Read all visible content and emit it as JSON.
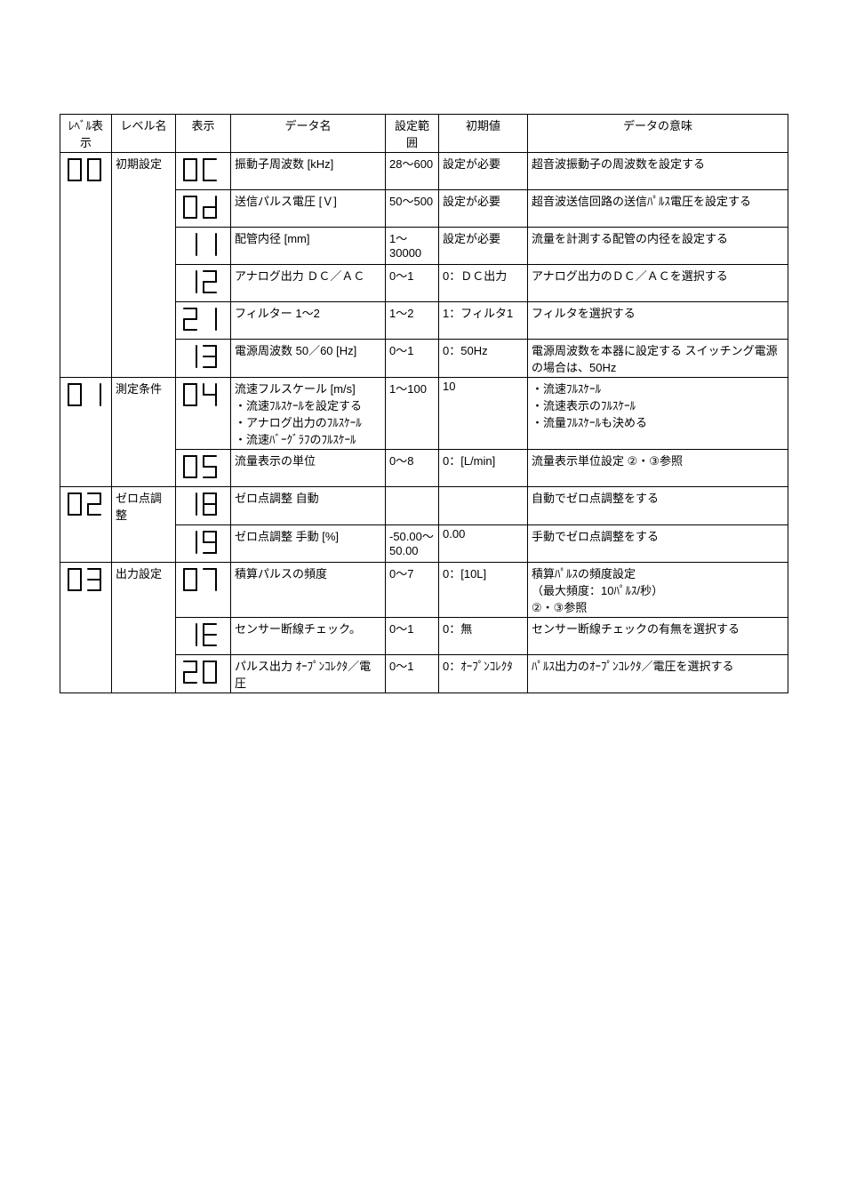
{
  "page": {
    "header": [
      "ﾚﾍﾞﾙ表示",
      "レベル名",
      "表示",
      "データ名",
      "設定範囲",
      "初期値",
      "データの意味"
    ],
    "rows": [
      {
        "level_seg": "00",
        "level_name": "初期設定",
        "code_seg": "0C",
        "name": "振動子周波数 [kHz]",
        "range": "28～600",
        "init": "設定が必要",
        "desc": "超音波振動子の周波数を設定する"
      },
      {
        "level_seg": "",
        "level_name": "",
        "code_seg": "0D",
        "name": "送信パルス電圧 [Ｖ]",
        "range": "50～500",
        "init": "設定が必要",
        "desc": "超音波送信回路の送信ﾊﾟﾙｽ電圧を設定する"
      },
      {
        "level_seg": "",
        "level_name": "",
        "code_seg": "11",
        "name": "配管内径 [mm]",
        "range": "1～30000",
        "init": "設定が必要",
        "desc": "流量を計測する配管の内径を設定する"
      },
      {
        "level_seg": "",
        "level_name": "",
        "code_seg": "12",
        "name": "アナログ出力 ＤＣ／ＡＣ",
        "range": "0～1",
        "init": "0：ＤＣ出力",
        "desc": "アナログ出力のＤＣ／ＡＣを選択する"
      },
      {
        "level_seg": "",
        "level_name": "",
        "code_seg": "21",
        "name": "フィルター 1～2",
        "range": "1～2",
        "init": "1：フィルタ1",
        "desc": "フィルタを選択する"
      },
      {
        "level_seg": "",
        "level_name": "",
        "code_seg": "13",
        "name": "電源周波数 50／60 [Hz]",
        "range": "0～1",
        "init": "0：50Hz",
        "desc": "電源周波数を本器に設定する スイッチング電源の場合は、50Hz"
      },
      {
        "level_seg": "01",
        "level_name": "測定条件",
        "code_seg": "04",
        "name": "流速フルスケール [m/s]",
        "range": "1～100",
        "init": "10",
        "desc_list": [
          "流速ﾌﾙｽｹｰﾙを設定する",
          "アナログ出力のﾌﾙｽｹｰﾙ",
          "流速ﾊﾞｰｸﾞﾗﾌのﾌﾙｽｹｰﾙ"
        ],
        "desc_list2": [
          "流速ﾌﾙｽｹｰﾙ",
          "流速表示のﾌﾙｽｹｰﾙ",
          "流量ﾌﾙｽｹｰﾙも決める"
        ]
      },
      {
        "level_seg": "",
        "level_name": "",
        "code_seg": "05",
        "name": "流量表示の単位",
        "range": "0～8",
        "init": "0：[L/min]",
        "desc": "流量表示単位設定 ②・③参照"
      },
      {
        "level_seg": "02",
        "level_name": "ゼロ点調整",
        "code_seg": "18",
        "name": "ゼロ点調整 自動",
        "range": "",
        "init": "",
        "desc": "自動でゼロ点調整をする"
      },
      {
        "level_seg": "",
        "level_name": "",
        "code_seg": "19",
        "name": "ゼロ点調整 手動 [%]",
        "range": "-50.00～50.00",
        "init": "0.00",
        "desc": "手動でゼロ点調整をする"
      },
      {
        "level_seg": "03",
        "level_name": "出力設定",
        "code_seg": "07",
        "name": "積算パルスの頻度",
        "range": "0～7",
        "init": "0：[10L]",
        "desc": "積算ﾊﾟﾙｽの頻度設定\n（最大頻度：10ﾊﾟﾙｽ/秒）\n②・③参照"
      },
      {
        "level_seg": "",
        "level_name": "",
        "code_seg": "1E",
        "name": "センサー断線チェック。",
        "range": "0～1",
        "init": "0：無",
        "desc": "センサー断線チェックの有無を選択する"
      },
      {
        "level_seg": "",
        "level_name": "",
        "code_seg": "20",
        "name": "パルス出力 ｵｰﾌﾟﾝｺﾚｸﾀ／電圧",
        "range": "0～1",
        "init": "0：ｵｰﾌﾟﾝｺﾚｸﾀ",
        "desc": "ﾊﾟﾙｽ出力のｵｰﾌﾟﾝｺﾚｸﾀ／電圧を選択する"
      }
    ],
    "seg_glyphs": {
      "00": "00",
      "0C": "0C",
      "0D": "0d",
      "11": "11",
      "12": "12",
      "21": "21",
      "13": "13",
      "01": "01",
      "04": "04",
      "05": "05",
      "02": "02",
      "18": "18",
      "19": "19",
      "03": "03",
      "07": "07",
      "1E": "1E",
      "20": "20"
    },
    "seg_color": "#000000",
    "seg_bg": "#ffffff"
  }
}
